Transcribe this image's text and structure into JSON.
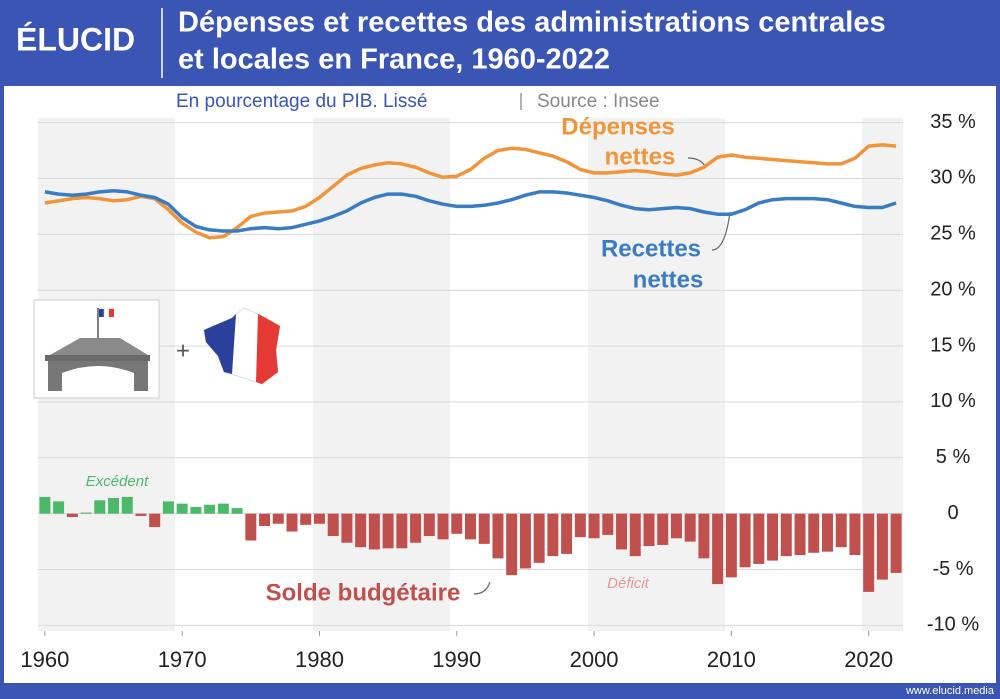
{
  "brand": "ÉLUCID",
  "footer": "www.elucid.media",
  "chart_data": {
    "type": "line_bar",
    "title": [
      "Dépenses et recettes des administrations centrales",
      "et locales en France, 1960-2022"
    ],
    "subtitle": "En pourcentage du PIB. Lissé",
    "source": "Source : Insee",
    "x": [
      1960,
      1961,
      1962,
      1963,
      1964,
      1965,
      1966,
      1967,
      1968,
      1969,
      1970,
      1971,
      1972,
      1973,
      1974,
      1975,
      1976,
      1977,
      1978,
      1979,
      1980,
      1981,
      1982,
      1983,
      1984,
      1985,
      1986,
      1987,
      1988,
      1989,
      1990,
      1991,
      1992,
      1993,
      1994,
      1995,
      1996,
      1997,
      1998,
      1999,
      2000,
      2001,
      2002,
      2003,
      2004,
      2005,
      2006,
      2007,
      2008,
      2009,
      2010,
      2011,
      2012,
      2013,
      2014,
      2015,
      2016,
      2017,
      2018,
      2019,
      2020,
      2021,
      2022
    ],
    "xlim": [
      1959.5,
      2022.5
    ],
    "xticks": [
      1960,
      1970,
      1980,
      1990,
      2000,
      2010,
      2020
    ],
    "ylim": [
      -10.5,
      35.5
    ],
    "yticks": [
      {
        "value": 35,
        "label": "35 %"
      },
      {
        "value": 30,
        "label": "30 %"
      },
      {
        "value": 25,
        "label": "25 %"
      },
      {
        "value": 20,
        "label": "20 %"
      },
      {
        "value": 15,
        "label": "15 %"
      },
      {
        "value": 10,
        "label": "10 %"
      },
      {
        "value": 5,
        "label": "5 %"
      },
      0,
      {
        "value": -5,
        "label": "-5 %"
      },
      {
        "value": -10,
        "label": "-10 %"
      }
    ],
    "grid": true,
    "series": [
      {
        "name": [
          "Dépenses",
          "nettes"
        ],
        "kind": "line",
        "color": "#f0953a",
        "values": [
          27.8,
          28,
          28.2,
          28.3,
          28.2,
          28,
          28.1,
          28.4,
          28.2,
          27.2,
          26,
          25.2,
          24.7,
          24.8,
          25.6,
          26.6,
          26.9,
          27,
          27.1,
          27.5,
          28.3,
          29.3,
          30.3,
          30.9,
          31.2,
          31.4,
          31.3,
          31,
          30.5,
          30.1,
          30.2,
          30.8,
          31.8,
          32.5,
          32.7,
          32.6,
          32.3,
          32,
          31.5,
          30.8,
          30.5,
          30.5,
          30.6,
          30.7,
          30.6,
          30.4,
          30.3,
          30.5,
          31,
          31.9,
          32.1,
          31.9,
          31.8,
          31.7,
          31.6,
          31.5,
          31.4,
          31.3,
          31.3,
          31.8,
          32.9,
          33,
          32.9
        ]
      },
      {
        "name": [
          "Recettes",
          "nettes"
        ],
        "kind": "line",
        "color": "#3a7cc4",
        "values": [
          28.8,
          28.6,
          28.5,
          28.6,
          28.8,
          28.9,
          28.8,
          28.5,
          28.3,
          27.7,
          26.5,
          25.7,
          25.4,
          25.3,
          25.3,
          25.5,
          25.6,
          25.5,
          25.6,
          25.9,
          26.2,
          26.6,
          27.1,
          27.8,
          28.3,
          28.6,
          28.6,
          28.4,
          28,
          27.7,
          27.5,
          27.5,
          27.6,
          27.8,
          28.1,
          28.5,
          28.8,
          28.8,
          28.7,
          28.5,
          28.3,
          28,
          27.6,
          27.3,
          27.2,
          27.3,
          27.4,
          27.3,
          27,
          26.8,
          26.8,
          27.2,
          27.8,
          28.1,
          28.2,
          28.2,
          28.2,
          28.1,
          27.8,
          27.5,
          27.4,
          27.4,
          27.8
        ]
      },
      {
        "name": [
          "Solde budgétaire"
        ],
        "kind": "bar",
        "color": "#c0504d",
        "positive_color": "#4cb86a",
        "values": [
          1.5,
          1.1,
          -0.3,
          0.1,
          1.2,
          1.4,
          1.5,
          -0.2,
          -1.2,
          1.1,
          0.9,
          0.6,
          0.8,
          0.9,
          0.5,
          -2.4,
          -1.1,
          -0.9,
          -1.6,
          -1,
          -0.9,
          -2,
          -2.6,
          -3,
          -3.2,
          -3.1,
          -3.1,
          -2.6,
          -2,
          -2.3,
          -1.8,
          -2.3,
          -2.7,
          -4,
          -5.5,
          -4.9,
          -4.4,
          -3.8,
          -3.6,
          -2.1,
          -2.2,
          -1.9,
          -3.2,
          -3.8,
          -2.9,
          -2.8,
          -2.2,
          -2.5,
          -4,
          -6.3,
          -5.7,
          -4.8,
          -4.5,
          -4.2,
          -3.8,
          -3.7,
          -3.5,
          -3.4,
          -3,
          -3.7,
          -7,
          -5.9,
          -5.3
        ]
      }
    ],
    "annotations": [
      "Excédent",
      "Déficit"
    ]
  }
}
